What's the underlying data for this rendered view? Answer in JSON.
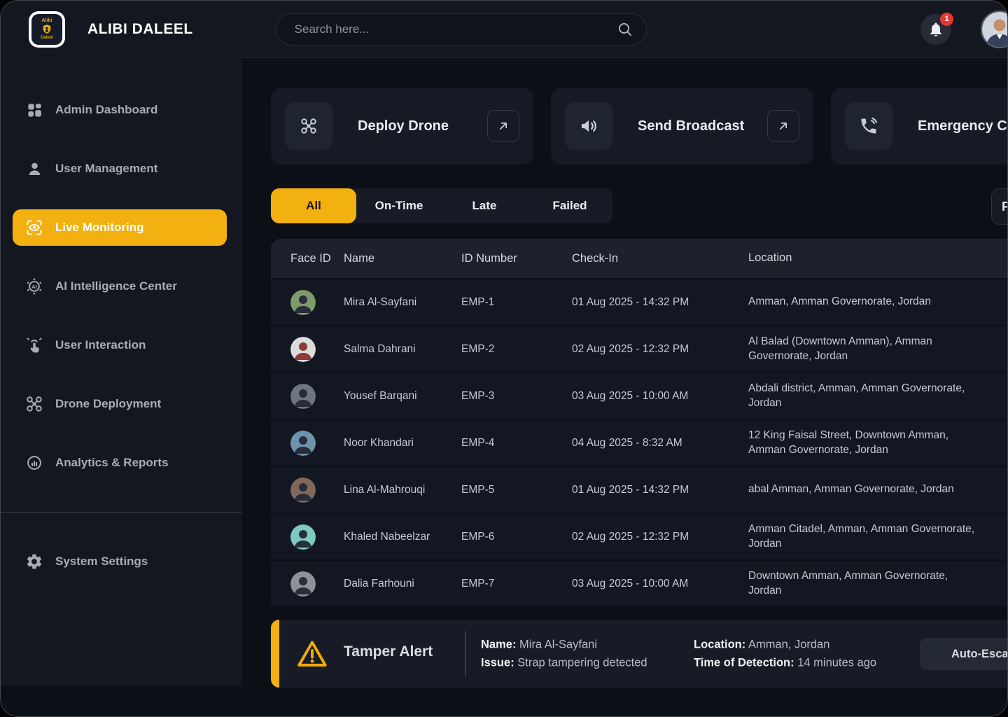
{
  "app": {
    "title": "ALIBI DALEEL",
    "logo_top": "Alibi",
    "logo_bottom": "Daleel"
  },
  "topbar": {
    "search_placeholder": "Search here...",
    "notification_count": "1"
  },
  "sidebar": {
    "items": [
      {
        "label": "Admin Dashboard",
        "icon": "grid",
        "active": false
      },
      {
        "label": "User Management",
        "icon": "user",
        "active": false
      },
      {
        "label": "Live Monitoring",
        "icon": "eye-scan",
        "active": true
      },
      {
        "label": "AI Intelligence Center",
        "icon": "ai",
        "active": false
      },
      {
        "label": "User Interaction",
        "icon": "touch",
        "active": false
      },
      {
        "label": "Drone Deployment",
        "icon": "drone",
        "active": false
      },
      {
        "label": "Analytics & Reports",
        "icon": "chart",
        "active": false
      }
    ],
    "footer_items": [
      {
        "label": "System Settings",
        "icon": "gear",
        "active": false
      }
    ]
  },
  "actions": [
    {
      "label": "Deploy Drone",
      "icon": "drone"
    },
    {
      "label": "Send Broadcast",
      "icon": "megaphone"
    },
    {
      "label": "Emergency Call",
      "icon": "phone"
    }
  ],
  "filters": {
    "tabs": [
      {
        "label": "All",
        "active": true
      },
      {
        "label": "On-Time",
        "active": false
      },
      {
        "label": "Late",
        "active": false
      },
      {
        "label": "Failed",
        "active": false
      }
    ],
    "overflow_button_label": "F"
  },
  "table": {
    "columns": [
      "Face ID",
      "Name",
      "ID Number",
      "Check-In",
      "Location"
    ],
    "rows": [
      {
        "name": "Mira Al-Sayfani",
        "id": "EMP-1",
        "checkin": "01 Aug 2025 - 14:32 PM",
        "location": "Amman, Amman Governorate, Jordan",
        "avatar_color": "#7f9a6a"
      },
      {
        "name": "Salma Dahrani",
        "id": "EMP-2",
        "checkin": "02 Aug 2025 - 12:32 PM",
        "location": "Al Balad (Downtown Amman), Amman Governorate, Jordan",
        "avatar_color": "#dcdcdc"
      },
      {
        "name": "Yousef Barqani",
        "id": "EMP-3",
        "checkin": "03 Aug 2025 - 10:00 AM",
        "location": "Abdali district, Amman, Amman Governorate, Jordan",
        "avatar_color": "#6e7682"
      },
      {
        "name": "Noor Khandari",
        "id": "EMP-4",
        "checkin": "04 Aug 2025 - 8:32 AM",
        "location": "12 King Faisal Street, Downtown Amman, Amman Governorate, Jordan",
        "avatar_color": "#6d93ad"
      },
      {
        "name": "Lina Al-Mahrouqi",
        "id": "EMP-5",
        "checkin": "01 Aug 2025 - 14:32 PM",
        "location": "abal Amman, Amman Governorate, Jordan",
        "avatar_color": "#80695a"
      },
      {
        "name": "Khaled Nabeelzar",
        "id": "EMP-6",
        "checkin": "02 Aug 2025 - 12:32 PM",
        "location": "Amman Citadel, Amman, Amman Governorate, Jordan",
        "avatar_color": "#7ecac2"
      },
      {
        "name": "Dalia Farhouni",
        "id": "EMP-7",
        "checkin": "03 Aug 2025 - 10:00 AM",
        "location": "Downtown Amman, Amman Governorate, Jordan",
        "avatar_color": "#8d9299"
      }
    ]
  },
  "alert": {
    "title": "Tamper Alert",
    "name_label": "Name:",
    "name_value": "Mira Al-Sayfani",
    "issue_label": "Issue:",
    "issue_value": "Strap tampering detected",
    "location_label": "Location:",
    "location_value": "Amman, Jordan",
    "time_label": "Time of Detection:",
    "time_value": "14 minutes ago",
    "action_label": "Auto-Escalate"
  },
  "colors": {
    "accent": "#F2B111",
    "alert_red": "#E53834"
  }
}
